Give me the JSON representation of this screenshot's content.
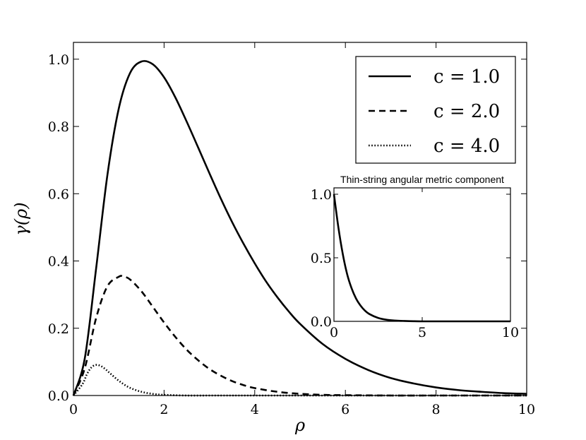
{
  "chart_data": [
    {
      "type": "line",
      "title": "",
      "xlabel": "ρ",
      "ylabel": "γ(ρ)",
      "xlim": [
        0,
        10
      ],
      "ylim": [
        0,
        1.05
      ],
      "xticks": [
        0,
        2,
        4,
        6,
        8,
        10
      ],
      "xtick_labels": [
        "0",
        "2",
        "4",
        "6",
        "8",
        "10"
      ],
      "yticks": [
        0.0,
        0.2,
        0.4,
        0.6,
        0.8,
        1.0
      ],
      "ytick_labels": [
        "0.0",
        "0.2",
        "0.4",
        "0.6",
        "0.8",
        "1.0"
      ],
      "grid": false,
      "legend_position": "top-right",
      "series": [
        {
          "name": "c = 1.0",
          "style": "solid",
          "color": "#000000",
          "x": [
            0,
            0.25,
            0.5,
            0.75,
            1.0,
            1.25,
            1.5,
            1.75,
            2.0,
            2.25,
            2.5,
            2.75,
            3.0,
            3.25,
            3.5,
            3.75,
            4.0,
            4.25,
            4.5,
            4.75,
            5.0,
            5.5,
            6.0,
            6.5,
            7.0,
            7.5,
            8.0,
            8.5,
            9.0,
            9.5,
            10.0
          ],
          "y": [
            0,
            0.11,
            0.377,
            0.656,
            0.853,
            0.959,
            0.993,
            0.985,
            0.946,
            0.886,
            0.814,
            0.738,
            0.661,
            0.586,
            0.516,
            0.452,
            0.393,
            0.339,
            0.292,
            0.25,
            0.213,
            0.153,
            0.109,
            0.076,
            0.052,
            0.036,
            0.024,
            0.016,
            0.011,
            0.007,
            0.005
          ]
        },
        {
          "name": "c = 2.0",
          "style": "dashed",
          "color": "#000000",
          "x": [
            0,
            0.25,
            0.5,
            0.75,
            1.0,
            1.1,
            1.25,
            1.5,
            1.75,
            2.0,
            2.25,
            2.5,
            2.75,
            3.0,
            3.25,
            3.5,
            3.75,
            4.0,
            4.5,
            5.0,
            5.5,
            6.0,
            7.0,
            8.0,
            10.0
          ],
          "y": [
            0,
            0.081,
            0.23,
            0.325,
            0.353,
            0.354,
            0.345,
            0.31,
            0.264,
            0.217,
            0.174,
            0.136,
            0.105,
            0.079,
            0.059,
            0.043,
            0.031,
            0.022,
            0.011,
            0.005,
            0.002,
            0.001,
            0.0,
            0.0,
            0.0
          ]
        },
        {
          "name": "c = 4.0",
          "style": "dotted",
          "color": "#000000",
          "x": [
            0,
            0.2,
            0.3,
            0.4,
            0.5,
            0.6,
            0.7,
            0.8,
            1.0,
            1.2,
            1.4,
            1.6,
            1.8,
            2.0,
            2.5,
            3.0,
            4.0,
            6.0,
            10.0
          ],
          "y": [
            0,
            0.034,
            0.064,
            0.084,
            0.091,
            0.088,
            0.079,
            0.067,
            0.044,
            0.026,
            0.015,
            0.008,
            0.004,
            0.002,
            0.0,
            0.0,
            0.0,
            0.0,
            0.0
          ]
        }
      ]
    },
    {
      "type": "line",
      "title": "Thin-string angular metric component",
      "xlim": [
        0,
        10
      ],
      "ylim": [
        0,
        1.05
      ],
      "xticks": [
        0,
        5,
        10
      ],
      "xtick_labels": [
        "0",
        "5",
        "10"
      ],
      "yticks": [
        0.0,
        0.5,
        1.0
      ],
      "ytick_labels": [
        "0.0",
        "0.5",
        "1.0"
      ],
      "grid": false,
      "series": [
        {
          "style": "solid",
          "color": "#000000",
          "x": [
            0,
            0.25,
            0.5,
            0.75,
            1.0,
            1.25,
            1.5,
            1.75,
            2.0,
            2.5,
            3.0,
            3.5,
            4.0,
            4.5,
            5.0,
            6.0,
            7.0,
            8.0,
            9.0,
            10.0
          ],
          "y": [
            1.0,
            0.74,
            0.53,
            0.37,
            0.26,
            0.18,
            0.125,
            0.085,
            0.058,
            0.027,
            0.012,
            0.006,
            0.003,
            0.001,
            0.0,
            0.0,
            0.0,
            0.0,
            0.0,
            0.0
          ]
        }
      ]
    }
  ]
}
